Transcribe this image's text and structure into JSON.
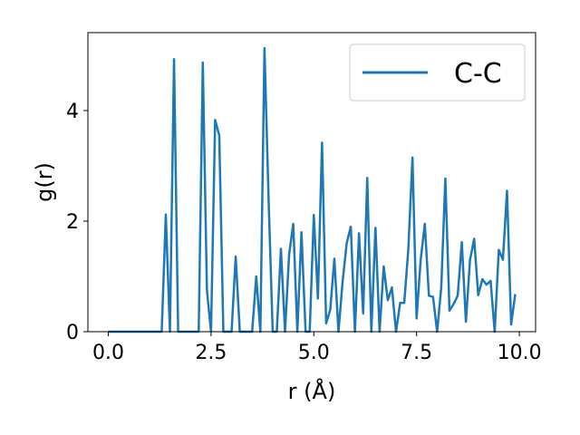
{
  "chart_data": {
    "type": "line",
    "x": [
      0.0,
      0.1,
      0.2,
      0.3,
      0.4,
      0.5,
      0.6,
      0.7,
      0.8,
      0.9,
      1.0,
      1.1,
      1.2,
      1.3,
      1.4,
      1.5,
      1.6,
      1.7,
      1.8,
      1.9,
      2.0,
      2.1,
      2.2,
      2.3,
      2.4,
      2.5,
      2.6,
      2.7,
      2.8,
      2.9,
      3.0,
      3.1,
      3.2,
      3.3,
      3.4,
      3.5,
      3.6,
      3.7,
      3.8,
      3.9,
      4.0,
      4.1,
      4.2,
      4.3,
      4.4,
      4.5,
      4.6,
      4.7,
      4.8,
      4.9,
      5.0,
      5.1,
      5.2,
      5.3,
      5.4,
      5.5,
      5.6,
      5.7,
      5.8,
      5.9,
      6.0,
      6.1,
      6.2,
      6.3,
      6.4,
      6.5,
      6.6,
      6.7,
      6.8,
      6.9,
      7.0,
      7.1,
      7.2,
      7.3,
      7.4,
      7.5,
      7.6,
      7.7,
      7.8,
      7.9,
      8.0,
      8.1,
      8.2,
      8.3,
      8.4,
      8.5,
      8.6,
      8.7,
      8.8,
      8.9,
      9.0,
      9.1,
      9.2,
      9.3,
      9.4,
      9.5,
      9.6,
      9.7,
      9.8,
      9.9
    ],
    "series": [
      {
        "name": "C-C",
        "color": "#1f77b4",
        "values": [
          0,
          0,
          0,
          0,
          0,
          0,
          0,
          0,
          0,
          0,
          0,
          0,
          0,
          0,
          2.12,
          0,
          4.93,
          0,
          0,
          0,
          0,
          0,
          0,
          4.87,
          0.75,
          0,
          3.83,
          3.55,
          0,
          0,
          0,
          1.36,
          0,
          0,
          0,
          0,
          1.0,
          0,
          5.13,
          2.4,
          0,
          0,
          1.5,
          0,
          1.4,
          1.95,
          0,
          1.8,
          0,
          0,
          2.11,
          0.6,
          3.42,
          0.15,
          0.4,
          1.32,
          0,
          0.9,
          1.6,
          1.9,
          0,
          1.78,
          0.33,
          2.78,
          0,
          1.88,
          0,
          1.18,
          0.57,
          0.8,
          0,
          0.52,
          0.52,
          1.5,
          3.15,
          0.24,
          1.3,
          1.95,
          0.65,
          0.63,
          0,
          0.8,
          2.77,
          0.38,
          0.5,
          0.65,
          1.62,
          0.18,
          1.3,
          1.68,
          0.66,
          0.95,
          0.85,
          0.92,
          0,
          1.48,
          1.3,
          2.55,
          0.13,
          0.68
        ]
      }
    ],
    "xlabel": "r (Å)",
    "ylabel": "g(r)",
    "xlim": [
      -0.495,
      10.395
    ],
    "ylim": [
      0,
      5.41
    ],
    "xticks": [
      {
        "value": 0,
        "label": "0.0"
      },
      {
        "value": 2.5,
        "label": "2.5"
      },
      {
        "value": 5,
        "label": "5.0"
      },
      {
        "value": 7.5,
        "label": "7.5"
      },
      {
        "value": 10,
        "label": "10.0"
      }
    ],
    "yticks": [
      0,
      2,
      4
    ],
    "legend": "upper right",
    "grid": false
  }
}
